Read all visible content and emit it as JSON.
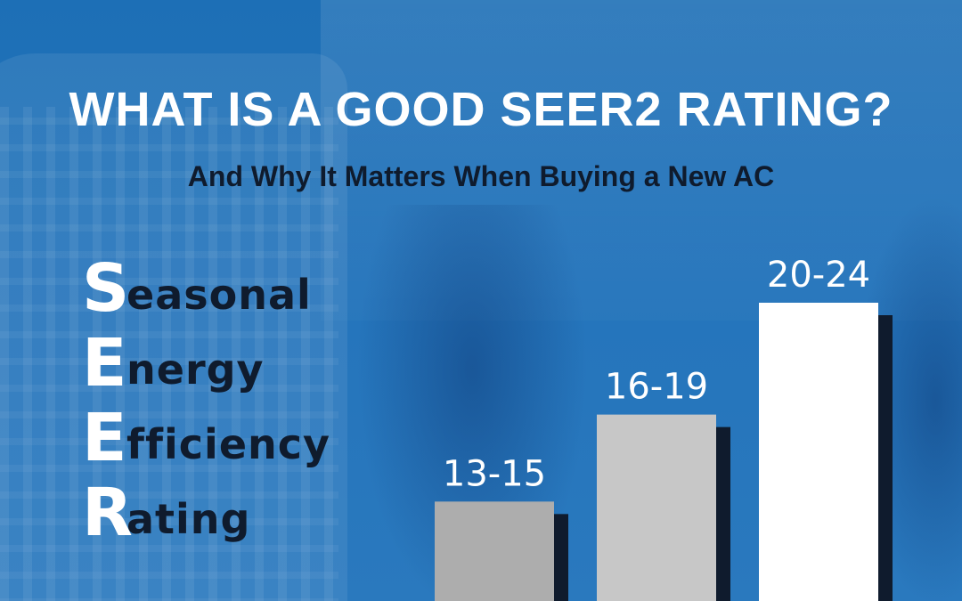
{
  "header": {
    "title": "WHAT IS A GOOD SEER2 RATING?",
    "subtitle": "And Why It Matters When Buying a New AC"
  },
  "acronym": [
    {
      "letter": "S",
      "rest": "easonal"
    },
    {
      "letter": "E",
      "rest": "nergy"
    },
    {
      "letter": "E",
      "rest": "fficiency"
    },
    {
      "letter": "R",
      "rest": "ating"
    }
  ],
  "colors": {
    "background": "#2474bb",
    "bar_low": "#adadad",
    "bar_mid": "#c7c7c7",
    "bar_high": "#ffffff",
    "bar_shadow": "#0f1b2d",
    "title": "#ffffff",
    "subtitle": "#0f1b2d"
  },
  "chart_data": {
    "type": "bar",
    "categories": [
      "13-15",
      "16-19",
      "20-24"
    ],
    "series": [
      {
        "values": [
          14,
          17.5,
          22
        ]
      }
    ],
    "data_labels": [
      "13-15",
      "16-19",
      "20-24"
    ],
    "title": "",
    "xlabel": "",
    "ylabel": "",
    "grid": false,
    "legend": "none"
  }
}
